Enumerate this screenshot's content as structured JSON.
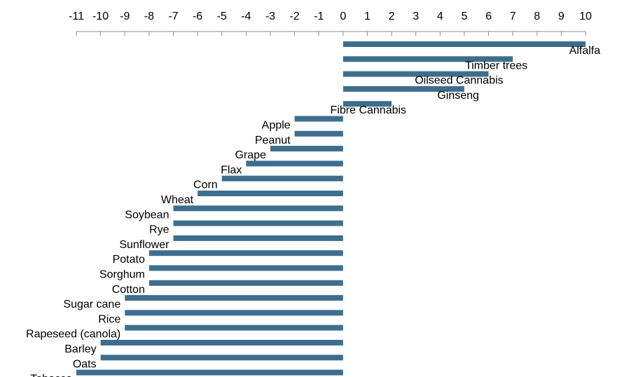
{
  "chart_data": {
    "type": "bar",
    "orientation": "horizontal",
    "categories": [
      "Alfalfa",
      "Timber trees",
      "Oilseed Cannabis",
      "Ginseng",
      "Fibre Cannabis",
      "Apple",
      "Peanut",
      "Grape",
      "Flax",
      "Corn",
      "Wheat",
      "Soybean",
      "Rye",
      "Sunflower",
      "Potato",
      "Sorghum",
      "Cotton",
      "Sugar cane",
      "Rice",
      "Rapeseed (canola)",
      "Barley",
      "Oats",
      "Tobacco"
    ],
    "values": [
      10,
      7,
      6,
      5,
      2,
      -2,
      -2,
      -3,
      -4,
      -5,
      -6,
      -7,
      -7,
      -7,
      -8,
      -8,
      -8,
      -9,
      -9,
      -9,
      -10,
      -10,
      -11
    ],
    "xlim": [
      -11,
      10
    ],
    "xticks": [
      -11,
      -10,
      -9,
      -8,
      -7,
      -6,
      -5,
      -4,
      -3,
      -2,
      -1,
      0,
      1,
      2,
      3,
      4,
      5,
      6,
      7,
      8,
      9,
      10
    ],
    "axis_position": "top",
    "grid": false,
    "bar_color": "#3E6E8E",
    "axis_color": "#8C8C8C"
  }
}
